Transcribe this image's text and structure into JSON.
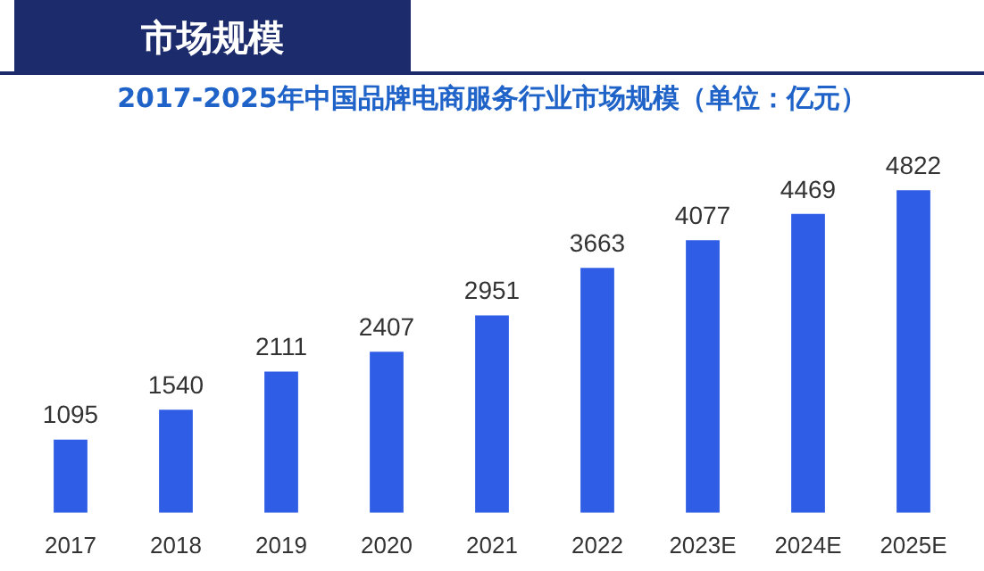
{
  "chart_data": {
    "type": "bar",
    "title": "市场规模",
    "subtitle": "2017-2025年中国品牌电商服务行业市场规模（单位：亿元）",
    "categories": [
      "2017",
      "2018",
      "2019",
      "2020",
      "2021",
      "2022",
      "2023E",
      "2024E",
      "2025E"
    ],
    "values": [
      1095,
      1540,
      2111,
      2407,
      2951,
      3663,
      4077,
      4469,
      4822
    ],
    "color": "#2f5de6",
    "data_labels": true,
    "grid": false,
    "legend": false
  }
}
